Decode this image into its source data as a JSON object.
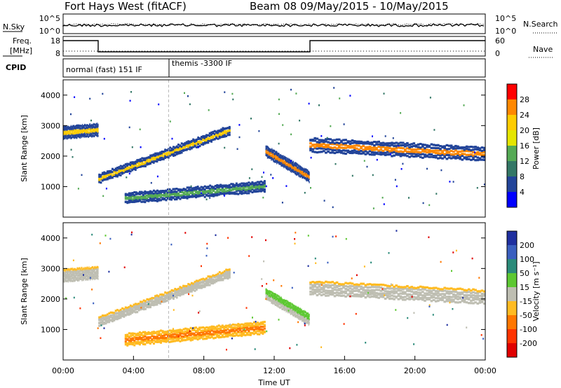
{
  "header": {
    "station": "Fort Hays West (fitACF)",
    "beam_dates": "Beam 08  09/May/2015 - 10/May/2015"
  },
  "noise_panel": {
    "left_label": "N.Sky",
    "left_ticks": [
      "10^5",
      "10^0"
    ],
    "right_ticks": [
      "10^5",
      "10^0"
    ],
    "right_label": "N.Search"
  },
  "freq_panel": {
    "left_label_line1": "Freq.",
    "left_label_line2": "[MHz]",
    "left_ticks": [
      "18",
      "8"
    ],
    "right_ticks": [
      "60",
      "0"
    ],
    "right_label": "Nave"
  },
  "cpid_panel": {
    "label": "CPID",
    "programs": [
      {
        "name": "normal (fast) 151 IF",
        "start_h": 0,
        "end_h": 6
      },
      {
        "name": "themis -3300 IF",
        "start_h": 6,
        "end_h": 24
      }
    ]
  },
  "time_axis": {
    "label": "Time UT",
    "ticks": [
      "00:00",
      "04:00",
      "08:00",
      "12:00",
      "16:00",
      "20:00",
      "00:00"
    ]
  },
  "power_colorbar": {
    "label": "Power [dB]",
    "ticks": [
      "28",
      "24",
      "20",
      "16",
      "12",
      "8",
      "4"
    ],
    "colors": [
      "#ff0000",
      "#ff8800",
      "#ffcc00",
      "#e5e500",
      "#55aa55",
      "#337766",
      "#224499",
      "#0000ff"
    ]
  },
  "velocity_colorbar": {
    "label": "Velocity [m s⁻¹]",
    "ticks": [
      "200",
      "100",
      "50",
      "15",
      "-15",
      "-50",
      "-100",
      "-200"
    ],
    "colors": [
      "#1f2f9f",
      "#3a5fbf",
      "#2b8b7a",
      "#5dc832",
      "#bebeb2",
      "#ffbb22",
      "#ff7700",
      "#ff3300",
      "#e00000"
    ]
  },
  "chart_data": [
    {
      "type": "heatmap",
      "panel": "power",
      "ylabel": "Slant Range [km]",
      "xlabel": "Time UT",
      "xlim": [
        0,
        24
      ],
      "ylim": [
        0,
        4500
      ],
      "y_ticks": [
        1000,
        2000,
        3000,
        4000
      ],
      "x_ticks_hours": [
        0,
        4,
        8,
        12,
        16,
        20,
        24
      ],
      "colorbar": "Power [dB]",
      "bands": [
        {
          "name": "early-ionospheric",
          "x": [
            0,
            2
          ],
          "y_center": [
            2800,
            2900
          ],
          "width": 350,
          "color_level": "mid"
        },
        {
          "name": "rising-band",
          "x": [
            2,
            9.5
          ],
          "y_center": [
            1300,
            2900
          ],
          "width": 250,
          "color_level": "mid"
        },
        {
          "name": "low-rising-band",
          "x": [
            3.5,
            11.5
          ],
          "y_center": [
            650,
            1050
          ],
          "width": 300,
          "color_level": "low"
        },
        {
          "name": "falling-band",
          "x": [
            11.5,
            14
          ],
          "y_center": [
            2200,
            1350
          ],
          "width": 300,
          "color_level": "high"
        },
        {
          "name": "late-band",
          "x": [
            14,
            24
          ],
          "y_center": [
            2400,
            2100
          ],
          "width": 400,
          "color_level": "high"
        }
      ]
    },
    {
      "type": "heatmap",
      "panel": "velocity",
      "ylabel": "Slant Range [km]",
      "xlabel": "Time UT",
      "xlim": [
        0,
        24
      ],
      "ylim": [
        0,
        4500
      ],
      "y_ticks": [
        1000,
        2000,
        3000,
        4000
      ],
      "x_ticks_hours": [
        0,
        4,
        8,
        12,
        16,
        20,
        24
      ],
      "colorbar": "Velocity [m s⁻¹]",
      "bands": [
        {
          "name": "early-ionospheric",
          "x": [
            0,
            2
          ],
          "y_center": [
            2800,
            2900
          ],
          "width": 350,
          "color_level": "ground"
        },
        {
          "name": "rising-band",
          "x": [
            2,
            9.5
          ],
          "y_center": [
            1300,
            2900
          ],
          "width": 250,
          "color_level": "ground"
        },
        {
          "name": "low-rising-band",
          "x": [
            3.5,
            11.5
          ],
          "y_center": [
            700,
            1100
          ],
          "width": 350,
          "color_level": "negative"
        },
        {
          "name": "falling-band",
          "x": [
            11.5,
            14
          ],
          "y_center": [
            2200,
            1350
          ],
          "width": 300,
          "color_level": "positive"
        },
        {
          "name": "late-band",
          "x": [
            14,
            24
          ],
          "y_center": [
            2400,
            2100
          ],
          "width": 400,
          "color_level": "ground"
        }
      ]
    }
  ]
}
